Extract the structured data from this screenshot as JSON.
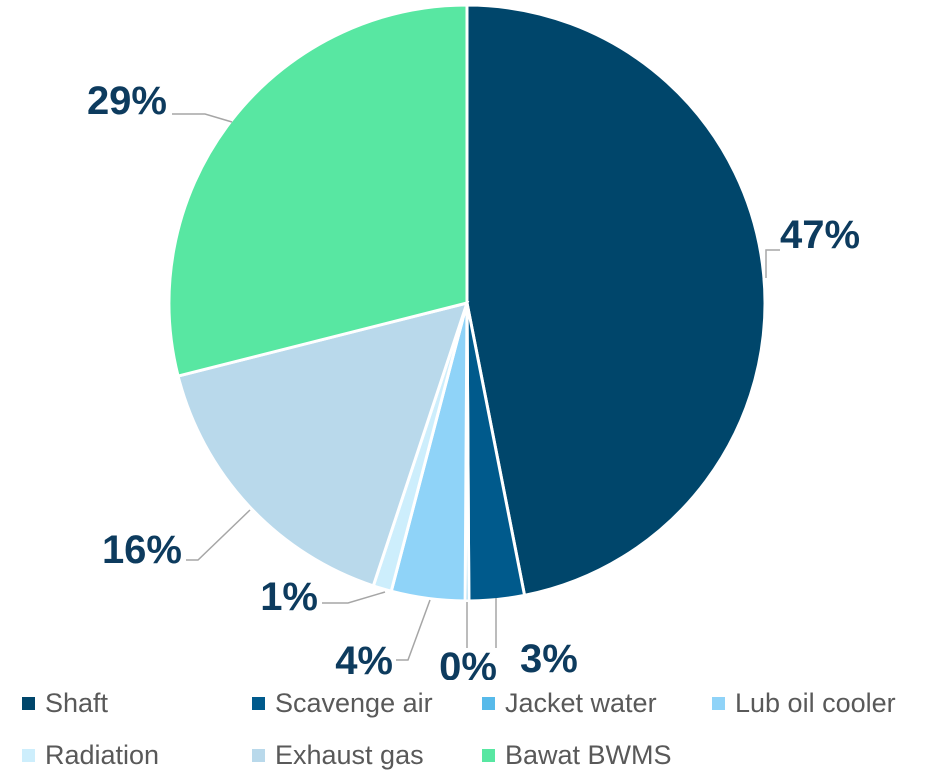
{
  "chart_data": {
    "type": "pie",
    "title": "",
    "legend_position": "bottom",
    "slices": [
      {
        "name": "Shaft",
        "value": 47,
        "label": "47%",
        "color": "#00466b"
      },
      {
        "name": "Scavenge air",
        "value": 3,
        "label": "3%",
        "color": "#005a8c"
      },
      {
        "name": "Jacket water",
        "value": 0.2,
        "label": "0%",
        "color": "#57baea"
      },
      {
        "name": "Lub oil cooler",
        "value": 4,
        "label": "4%",
        "color": "#8fd3f8"
      },
      {
        "name": "Radiation",
        "value": 1,
        "label": "1%",
        "color": "#cdeefc"
      },
      {
        "name": "Exhaust gas",
        "value": 16,
        "label": "16%",
        "color": "#b9d9eb"
      },
      {
        "name": "Bawat BWMS",
        "value": 29,
        "label": "29%",
        "color": "#58e7a2"
      }
    ]
  }
}
